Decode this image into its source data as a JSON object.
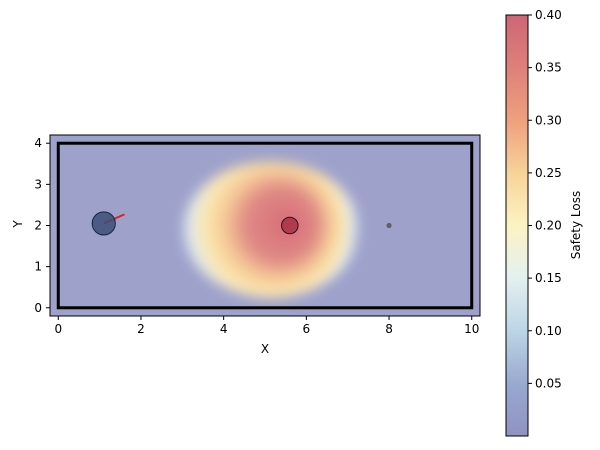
{
  "chart_data": {
    "type": "heatmap",
    "title": "",
    "xlabel": "X",
    "ylabel": "Y",
    "xlim": [
      -0.2,
      10.2
    ],
    "ylim": [
      -0.2,
      4.2
    ],
    "x_ticks": [
      0,
      2,
      4,
      6,
      8,
      10
    ],
    "y_ticks": [
      0,
      1,
      2,
      3,
      4
    ],
    "colorbar": {
      "label": "Safety Loss",
      "min": 0.0,
      "max": 0.4,
      "ticks": [
        0.05,
        0.1,
        0.15,
        0.2,
        0.25,
        0.3,
        0.35,
        0.4
      ],
      "tick_labels": [
        "0.05",
        "0.10",
        "0.15",
        "0.20",
        "0.25",
        "0.30",
        "0.35",
        "0.40"
      ],
      "colormap": "RdYlBu_r"
    },
    "boundary": {
      "x": [
        0,
        10
      ],
      "y": [
        0,
        4
      ],
      "color": "#000000"
    },
    "high_loss_region": {
      "center": [
        5.1,
        1.9
      ],
      "peak_value": 0.4
    },
    "agent": {
      "x": 1.1,
      "y": 2.05,
      "radius": 0.28,
      "color": "#3c4f78",
      "heading": {
        "dx": 0.5,
        "dy": 0.22,
        "color": "#e0201c"
      }
    },
    "obstacle": {
      "x": 5.6,
      "y": 2.0,
      "radius": 0.2,
      "color": "#a83244"
    },
    "goal": {
      "x": 8.0,
      "y": 2.0,
      "color": "#555555"
    }
  }
}
